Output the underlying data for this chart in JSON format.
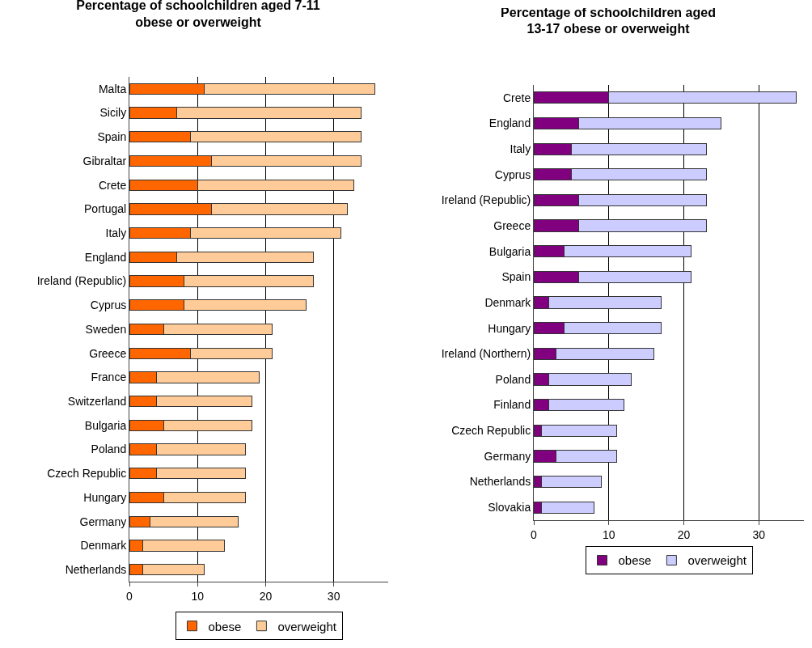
{
  "chart_data": [
    {
      "type": "bar",
      "orientation": "horizontal",
      "stacked": true,
      "title": "Percentage of schoolchildren aged 7-11 obese or overweight",
      "categories": [
        "Malta",
        "Sicily",
        "Spain",
        "Gibraltar",
        "Crete",
        "Portugal",
        "Italy",
        "England",
        "Ireland (Republic)",
        "Cyprus",
        "Sweden",
        "Greece",
        "France",
        "Switzerland",
        "Bulgaria",
        "Poland",
        "Czech Republic",
        "Hungary",
        "Germany",
        "Denmark",
        "Netherlands"
      ],
      "series": [
        {
          "name": "obese",
          "color": "#ff6600",
          "values": [
            11,
            7,
            9,
            12,
            10,
            12,
            9,
            7,
            8,
            8,
            5,
            9,
            4,
            4,
            5,
            4,
            4,
            5,
            3,
            2,
            2
          ]
        },
        {
          "name": "overweight",
          "color": "#ffcc99",
          "values": [
            25,
            27,
            25,
            22,
            23,
            20,
            22,
            20,
            19,
            18,
            16,
            12,
            15,
            14,
            13,
            13,
            13,
            12,
            13,
            12,
            9
          ]
        }
      ],
      "xlim": [
        0,
        38
      ],
      "xticks": [
        0,
        10,
        20,
        30
      ],
      "grid": "x",
      "legend": "bottom"
    },
    {
      "type": "bar",
      "orientation": "horizontal",
      "stacked": true,
      "title": "Percentage of schoolchildren aged 13-17 obese or overweight",
      "categories": [
        "Crete",
        "England",
        "Italy",
        "Cyprus",
        "Ireland (Republic)",
        "Greece",
        "Bulgaria",
        "Spain",
        "Denmark",
        "Hungary",
        "Ireland (Northern)",
        "Poland",
        "Finland",
        "Czech Republic",
        "Germany",
        "Netherlands",
        "Slovakia"
      ],
      "series": [
        {
          "name": "obese",
          "color": "#800080",
          "values": [
            10,
            6,
            5,
            5,
            6,
            6,
            4,
            6,
            2,
            4,
            3,
            2,
            2,
            1,
            3,
            1,
            1
          ]
        },
        {
          "name": "overweight",
          "color": "#ccccff",
          "values": [
            25,
            19,
            18,
            18,
            17,
            17,
            17,
            15,
            15,
            13,
            13,
            11,
            10,
            10,
            8,
            8,
            7
          ]
        }
      ],
      "xlim": [
        0,
        36
      ],
      "xticks": [
        0,
        10,
        20,
        30
      ],
      "grid": "x",
      "legend": "bottom"
    }
  ]
}
